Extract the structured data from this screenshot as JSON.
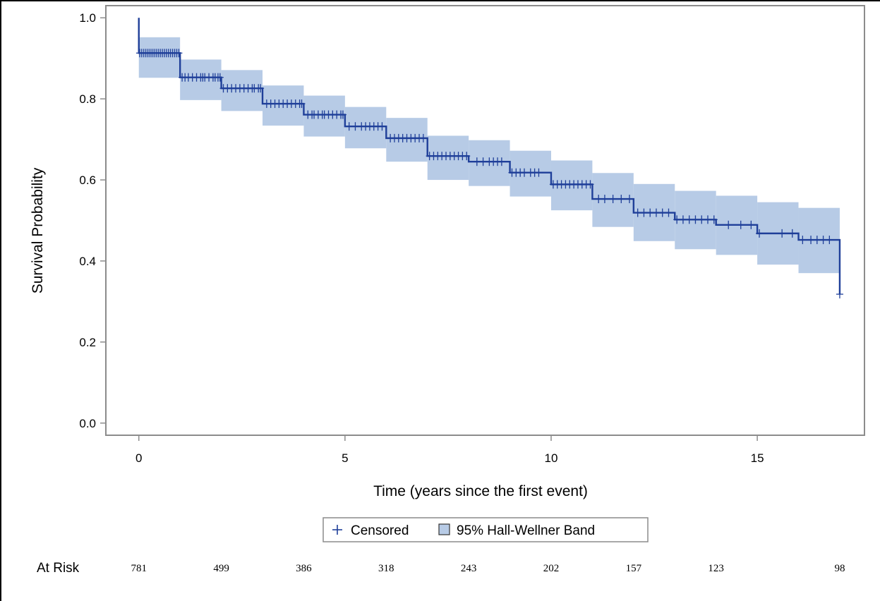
{
  "chart_data": {
    "type": "line",
    "title": "",
    "xlabel": "Time (years since the first event)",
    "ylabel": "Survival Probability",
    "xlim": [
      -0.8,
      17.6
    ],
    "ylim": [
      -0.03,
      1.03
    ],
    "x_ticks": [
      0,
      5,
      10,
      15
    ],
    "y_ticks": [
      0.0,
      0.2,
      0.4,
      0.6,
      0.8,
      1.0
    ],
    "y_tick_labels": [
      "0.0",
      "0.2",
      "0.4",
      "0.6",
      "0.8",
      "1.0"
    ],
    "x_tick_labels": [
      "0",
      "5",
      "10",
      "15"
    ],
    "grid": false,
    "colors": {
      "line": "#1f3f99",
      "band": "#b7cbe6",
      "frame": "#8c8c8c"
    },
    "series": [
      {
        "name": "",
        "type": "step",
        "x": [
          0,
          1,
          2,
          3,
          4,
          5,
          6,
          7,
          8,
          9,
          10,
          11,
          12,
          13,
          14,
          15,
          16,
          17
        ],
        "y": [
          0.913,
          0.853,
          0.826,
          0.788,
          0.761,
          0.732,
          0.703,
          0.659,
          0.645,
          0.618,
          0.589,
          0.553,
          0.519,
          0.502,
          0.489,
          0.468,
          0.452,
          0.318
        ],
        "start_y": 1.0
      },
      {
        "name": "95% Hall-Wellner Band",
        "type": "band",
        "x": [
          0,
          1,
          2,
          3,
          4,
          5,
          6,
          7,
          8,
          9,
          10,
          11,
          12,
          13,
          14,
          15,
          16
        ],
        "lower": [
          0.852,
          0.797,
          0.77,
          0.734,
          0.707,
          0.678,
          0.645,
          0.6,
          0.585,
          0.559,
          0.525,
          0.484,
          0.449,
          0.429,
          0.415,
          0.391,
          0.37
        ],
        "upper": [
          0.952,
          0.897,
          0.871,
          0.833,
          0.808,
          0.78,
          0.753,
          0.709,
          0.698,
          0.672,
          0.648,
          0.617,
          0.59,
          0.573,
          0.561,
          0.545,
          0.531
        ]
      }
    ],
    "censored": [
      0.02,
      0.07,
      0.12,
      0.17,
      0.22,
      0.27,
      0.32,
      0.37,
      0.42,
      0.47,
      0.52,
      0.57,
      0.62,
      0.67,
      0.72,
      0.77,
      0.82,
      0.87,
      0.92,
      0.97,
      1.05,
      1.12,
      1.2,
      1.3,
      1.4,
      1.5,
      1.55,
      1.6,
      1.7,
      1.8,
      1.85,
      1.92,
      1.97,
      2.05,
      2.15,
      2.25,
      2.35,
      2.45,
      2.55,
      2.65,
      2.75,
      2.8,
      2.9,
      2.95,
      3.1,
      3.2,
      3.3,
      3.4,
      3.5,
      3.6,
      3.7,
      3.8,
      3.9,
      3.95,
      4.1,
      4.2,
      4.25,
      4.35,
      4.45,
      4.5,
      4.6,
      4.7,
      4.8,
      4.9,
      4.95,
      5.1,
      5.25,
      5.4,
      5.5,
      5.6,
      5.7,
      5.8,
      5.9,
      6.1,
      6.2,
      6.3,
      6.4,
      6.5,
      6.6,
      6.7,
      6.8,
      6.9,
      7.05,
      7.15,
      7.25,
      7.35,
      7.45,
      7.55,
      7.65,
      7.75,
      7.85,
      7.95,
      8.2,
      8.35,
      8.5,
      8.6,
      8.7,
      8.8,
      9.05,
      9.15,
      9.25,
      9.35,
      9.5,
      9.6,
      9.7,
      10.05,
      10.15,
      10.25,
      10.35,
      10.45,
      10.55,
      10.65,
      10.75,
      10.85,
      10.95,
      11.15,
      11.3,
      11.5,
      11.7,
      11.9,
      12.1,
      12.25,
      12.4,
      12.55,
      12.7,
      12.85,
      13.05,
      13.2,
      13.35,
      13.5,
      13.65,
      13.8,
      13.95,
      14.3,
      14.6,
      14.85,
      15.05,
      15.6,
      15.85,
      16.1,
      16.3,
      16.45,
      16.6,
      16.75,
      17.0
    ],
    "legend": {
      "placement": "bottom",
      "entries": [
        "Censored",
        "95% Hall-Wellner Band"
      ]
    },
    "at_risk": {
      "label": "At Risk",
      "counts": [
        "781",
        "499",
        "386",
        "318",
        "243",
        "202",
        "157",
        "123",
        "98"
      ],
      "times": [
        0,
        2,
        4,
        6,
        8,
        10,
        12,
        14,
        17
      ]
    }
  }
}
